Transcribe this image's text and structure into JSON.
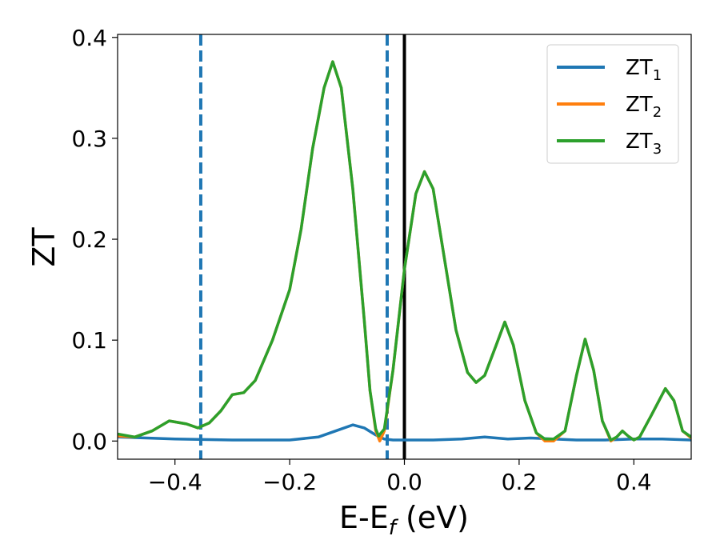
{
  "chart_data": {
    "type": "line",
    "xlabel": "E-E",
    "xlabel_sub": "f",
    "xlabel_unit": " (eV)",
    "ylabel": "ZT",
    "xlim": [
      -0.5,
      0.5
    ],
    "ylim": [
      -0.018,
      0.403
    ],
    "xticks": [
      -0.4,
      -0.2,
      0.0,
      0.2,
      0.4
    ],
    "xtick_labels": [
      "−0.4",
      "−0.2",
      "0.0",
      "0.2",
      "0.4"
    ],
    "yticks": [
      0.0,
      0.1,
      0.2,
      0.3,
      0.4
    ],
    "ytick_labels": [
      "0.0",
      "0.1",
      "0.2",
      "0.3",
      "0.4"
    ],
    "grid": false,
    "legend_position": "top-right",
    "vlines": [
      {
        "x": -0.355,
        "style": "dashed",
        "color": "#1f77b4"
      },
      {
        "x": -0.03,
        "style": "dashed",
        "color": "#1f77b4"
      },
      {
        "x": 0.0,
        "style": "solid",
        "color": "#000000"
      }
    ],
    "series": [
      {
        "name": "ZT",
        "name_sub": "1",
        "color": "#1f77b4",
        "points": [
          [
            -0.5,
            0.004
          ],
          [
            -0.4,
            0.002
          ],
          [
            -0.3,
            0.001
          ],
          [
            -0.2,
            0.001
          ],
          [
            -0.15,
            0.004
          ],
          [
            -0.12,
            0.01
          ],
          [
            -0.09,
            0.016
          ],
          [
            -0.07,
            0.013
          ],
          [
            -0.05,
            0.006
          ],
          [
            -0.035,
            0.002
          ],
          [
            -0.02,
            0.001
          ],
          [
            0.0,
            0.001
          ],
          [
            0.05,
            0.001
          ],
          [
            0.1,
            0.002
          ],
          [
            0.14,
            0.004
          ],
          [
            0.18,
            0.002
          ],
          [
            0.22,
            0.003
          ],
          [
            0.26,
            0.002
          ],
          [
            0.3,
            0.001
          ],
          [
            0.35,
            0.001
          ],
          [
            0.4,
            0.002
          ],
          [
            0.45,
            0.002
          ],
          [
            0.5,
            0.001
          ]
        ]
      },
      {
        "name": "ZT",
        "name_sub": "2",
        "color": "#ff7f0e",
        "points": [
          [
            -0.5,
            0.005
          ],
          [
            -0.47,
            0.004
          ],
          [
            -0.44,
            0.01
          ],
          [
            -0.41,
            0.02
          ],
          [
            -0.38,
            0.017
          ],
          [
            -0.36,
            0.013
          ],
          [
            -0.34,
            0.018
          ],
          [
            -0.32,
            0.03
          ],
          [
            -0.3,
            0.046
          ],
          [
            -0.28,
            0.048
          ],
          [
            -0.26,
            0.06
          ],
          [
            -0.23,
            0.1
          ],
          [
            -0.2,
            0.15
          ],
          [
            -0.18,
            0.21
          ],
          [
            -0.16,
            0.29
          ],
          [
            -0.14,
            0.35
          ],
          [
            -0.125,
            0.376
          ],
          [
            -0.11,
            0.35
          ],
          [
            -0.09,
            0.25
          ],
          [
            -0.07,
            0.12
          ],
          [
            -0.06,
            0.05
          ],
          [
            -0.05,
            0.01
          ],
          [
            -0.043,
            0.0
          ],
          [
            -0.035,
            0.01
          ],
          [
            -0.02,
            0.07
          ],
          [
            0.0,
            0.17
          ],
          [
            0.02,
            0.245
          ],
          [
            0.035,
            0.267
          ],
          [
            0.05,
            0.25
          ],
          [
            0.07,
            0.18
          ],
          [
            0.09,
            0.11
          ],
          [
            0.11,
            0.068
          ],
          [
            0.125,
            0.058
          ],
          [
            0.14,
            0.065
          ],
          [
            0.16,
            0.095
          ],
          [
            0.175,
            0.118
          ],
          [
            0.19,
            0.095
          ],
          [
            0.21,
            0.04
          ],
          [
            0.23,
            0.008
          ],
          [
            0.245,
            0.0
          ],
          [
            0.26,
            0.0
          ],
          [
            0.28,
            0.01
          ],
          [
            0.3,
            0.065
          ],
          [
            0.315,
            0.101
          ],
          [
            0.33,
            0.07
          ],
          [
            0.345,
            0.02
          ],
          [
            0.36,
            0.0
          ],
          [
            0.37,
            0.004
          ],
          [
            0.38,
            0.01
          ],
          [
            0.39,
            0.005
          ],
          [
            0.4,
            0.001
          ],
          [
            0.41,
            0.004
          ],
          [
            0.43,
            0.025
          ],
          [
            0.455,
            0.052
          ],
          [
            0.47,
            0.04
          ],
          [
            0.485,
            0.01
          ],
          [
            0.5,
            0.003
          ]
        ]
      },
      {
        "name": "ZT",
        "name_sub": "3",
        "color": "#2ca02c",
        "points": [
          [
            -0.5,
            0.007
          ],
          [
            -0.47,
            0.004
          ],
          [
            -0.44,
            0.01
          ],
          [
            -0.41,
            0.02
          ],
          [
            -0.38,
            0.017
          ],
          [
            -0.36,
            0.013
          ],
          [
            -0.34,
            0.018
          ],
          [
            -0.32,
            0.03
          ],
          [
            -0.3,
            0.046
          ],
          [
            -0.28,
            0.048
          ],
          [
            -0.26,
            0.06
          ],
          [
            -0.23,
            0.1
          ],
          [
            -0.2,
            0.15
          ],
          [
            -0.18,
            0.21
          ],
          [
            -0.16,
            0.29
          ],
          [
            -0.14,
            0.35
          ],
          [
            -0.125,
            0.376
          ],
          [
            -0.11,
            0.35
          ],
          [
            -0.09,
            0.25
          ],
          [
            -0.07,
            0.12
          ],
          [
            -0.06,
            0.05
          ],
          [
            -0.05,
            0.012
          ],
          [
            -0.045,
            0.005
          ],
          [
            -0.035,
            0.012
          ],
          [
            -0.02,
            0.07
          ],
          [
            0.0,
            0.17
          ],
          [
            0.02,
            0.245
          ],
          [
            0.035,
            0.267
          ],
          [
            0.05,
            0.25
          ],
          [
            0.07,
            0.18
          ],
          [
            0.09,
            0.11
          ],
          [
            0.11,
            0.068
          ],
          [
            0.125,
            0.058
          ],
          [
            0.14,
            0.065
          ],
          [
            0.16,
            0.095
          ],
          [
            0.175,
            0.118
          ],
          [
            0.19,
            0.095
          ],
          [
            0.21,
            0.04
          ],
          [
            0.23,
            0.008
          ],
          [
            0.245,
            0.002
          ],
          [
            0.26,
            0.002
          ],
          [
            0.28,
            0.01
          ],
          [
            0.3,
            0.065
          ],
          [
            0.315,
            0.101
          ],
          [
            0.33,
            0.07
          ],
          [
            0.345,
            0.02
          ],
          [
            0.36,
            0.001
          ],
          [
            0.37,
            0.004
          ],
          [
            0.38,
            0.01
          ],
          [
            0.39,
            0.005
          ],
          [
            0.4,
            0.001
          ],
          [
            0.41,
            0.004
          ],
          [
            0.43,
            0.025
          ],
          [
            0.455,
            0.052
          ],
          [
            0.47,
            0.04
          ],
          [
            0.485,
            0.01
          ],
          [
            0.5,
            0.004
          ]
        ]
      }
    ]
  }
}
